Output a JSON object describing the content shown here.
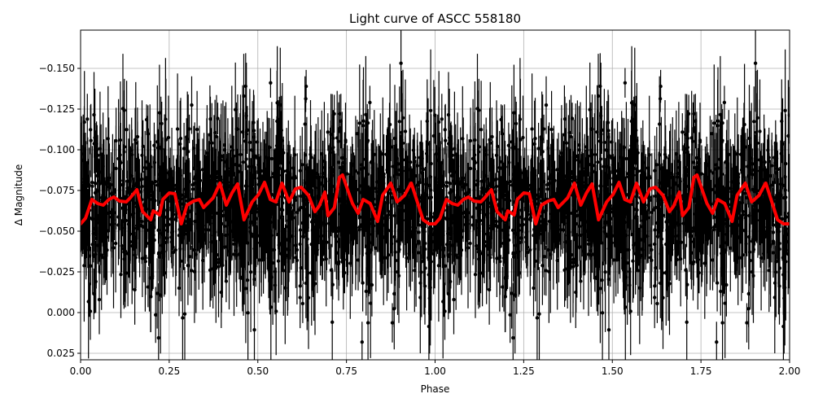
{
  "chart_data": {
    "type": "scatter",
    "title": "Light curve of ASCC 558180",
    "xlabel": "Phase",
    "ylabel": "Δ Magnitude",
    "xlim": [
      0.0,
      2.0
    ],
    "ylim": [
      0.029,
      -0.1735
    ],
    "y_inverted": true,
    "grid": true,
    "legend": null,
    "x_ticks": [
      "0.00",
      "0.25",
      "0.50",
      "0.75",
      "1.00",
      "1.25",
      "1.50",
      "1.75",
      "2.00"
    ],
    "x_tick_values": [
      0.0,
      0.25,
      0.5,
      0.75,
      1.0,
      1.25,
      1.5,
      1.75,
      2.0
    ],
    "y_ticks": [
      "−0.150",
      "−0.125",
      "−0.100",
      "−0.075",
      "−0.050",
      "−0.025",
      "0.000",
      "0.025"
    ],
    "y_tick_values": [
      -0.15,
      -0.125,
      -0.1,
      -0.075,
      -0.05,
      -0.025,
      0.0,
      0.025
    ],
    "series": [
      {
        "name": "observations",
        "kind": "errorbar-scatter",
        "color": "#000000",
        "description": "Dense phase-folded photometry (~thousands of points) scattered roughly between -0.17 and +0.03 with error bars, centered near -0.065; repeated for phase 1-2",
        "center": -0.065,
        "spread": 0.05
      },
      {
        "name": "binned-fit",
        "kind": "line",
        "color": "#ff0000",
        "linewidth": 4,
        "period_repeat": 1.0,
        "phase": [
          0.0,
          0.014,
          0.032,
          0.048,
          0.064,
          0.08,
          0.094,
          0.11,
          0.129,
          0.14,
          0.159,
          0.175,
          0.198,
          0.205,
          0.223,
          0.232,
          0.25,
          0.266,
          0.284,
          0.3,
          0.319,
          0.335,
          0.347,
          0.365,
          0.374,
          0.393,
          0.411,
          0.427,
          0.443,
          0.461,
          0.484,
          0.502,
          0.519,
          0.535,
          0.551,
          0.568,
          0.588,
          0.606,
          0.622,
          0.643,
          0.661,
          0.673,
          0.689,
          0.698,
          0.716,
          0.73,
          0.739,
          0.767,
          0.783,
          0.797,
          0.817,
          0.838,
          0.838,
          0.852,
          0.875,
          0.893,
          0.914,
          0.932,
          0.933,
          0.966,
          0.983,
          1.0
        ],
        "delta_mag": [
          -0.0545,
          -0.058,
          -0.0695,
          -0.067,
          -0.066,
          -0.0695,
          -0.071,
          -0.0685,
          -0.068,
          -0.0705,
          -0.0755,
          -0.062,
          -0.057,
          -0.0625,
          -0.06,
          -0.0695,
          -0.0735,
          -0.073,
          -0.0545,
          -0.066,
          -0.0685,
          -0.0695,
          -0.0645,
          -0.0685,
          -0.0705,
          -0.0795,
          -0.066,
          -0.0735,
          -0.079,
          -0.057,
          -0.068,
          -0.0725,
          -0.08,
          -0.0695,
          -0.068,
          -0.0795,
          -0.068,
          -0.076,
          -0.077,
          -0.072,
          -0.062,
          -0.0655,
          -0.074,
          -0.0595,
          -0.0645,
          -0.083,
          -0.0845,
          -0.067,
          -0.061,
          -0.0695,
          -0.067,
          -0.056,
          -0.056,
          -0.072,
          -0.0795,
          -0.068,
          -0.072,
          -0.0795,
          -0.0795,
          -0.057,
          -0.0545,
          -0.0545
        ]
      }
    ]
  },
  "colors": {
    "background": "#ffffff",
    "points": "#000000",
    "fit_line": "#ff0000",
    "grid": "#b0b0b0"
  }
}
